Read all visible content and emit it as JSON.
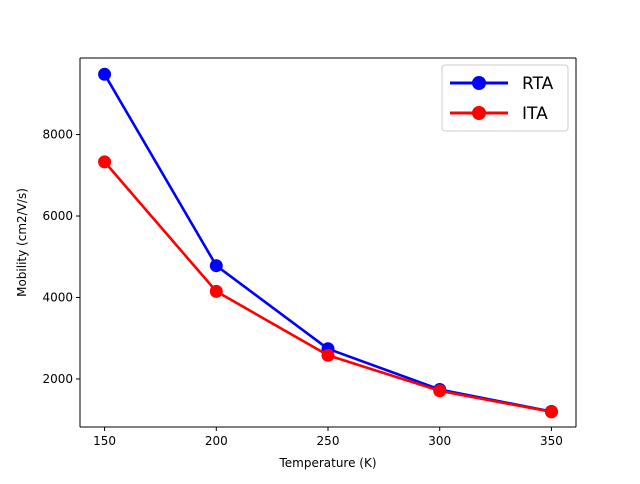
{
  "chart_data": {
    "type": "line",
    "title": "",
    "xlabel": "Temperature (K)",
    "ylabel": "Mobility (cm2/V/s)",
    "x": [
      150,
      200,
      250,
      300,
      350
    ],
    "xlim": [
      139,
      361
    ],
    "ylim": [
      820,
      9880
    ],
    "xticks": [
      150,
      200,
      250,
      300,
      350
    ],
    "yticks": [
      2000,
      4000,
      6000,
      8000
    ],
    "grid": false,
    "legend_position": "top-right",
    "series": [
      {
        "name": "RTA",
        "color": "#0000ff",
        "values": [
          9480,
          4780,
          2740,
          1740,
          1200
        ]
      },
      {
        "name": "ITA",
        "color": "#ff0000",
        "values": [
          7330,
          4150,
          2580,
          1710,
          1190
        ]
      }
    ]
  }
}
